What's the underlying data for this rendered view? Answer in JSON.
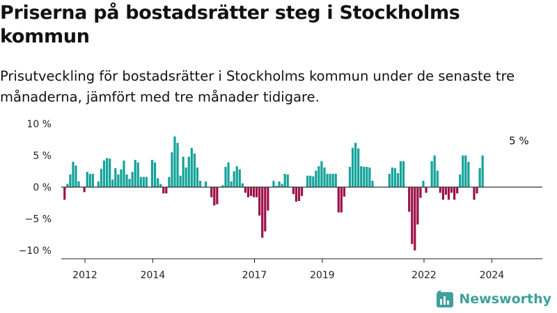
{
  "title": "Priserna på bostadsrätter steg i Stockholms kommun",
  "subtitle": "Prisutveckling för bostadsrätter i Stockholms kommun under de senaste tre månaderna, jämfört med tre månader tidigare.",
  "brand": {
    "name": "Newsworthy",
    "icon": "newsworthy-logo-icon",
    "color": "#3ea19b"
  },
  "colors": {
    "positive": "#14a39a",
    "negative": "#9b1148",
    "zero_line": "#333333"
  },
  "chart_data": {
    "type": "bar",
    "title": "",
    "xlabel": "",
    "ylabel": "",
    "ylim": [
      -11,
      10
    ],
    "y_ticks": [
      10,
      5,
      0,
      -5,
      -10
    ],
    "y_tick_labels": [
      "10 %",
      "5 %",
      "0 %",
      "−5 %",
      "−10 %"
    ],
    "x_tick_labels": [
      "2012",
      "2014",
      "2017",
      "2019",
      "2022",
      "2024"
    ],
    "x_tick_positions": [
      2012,
      2014,
      2017,
      2019,
      2022,
      2024
    ],
    "x_start": 2011.4,
    "x_step": 0.0833,
    "grid": false,
    "annotations": [
      {
        "text": "5 %",
        "x": 2024.84,
        "y": 5
      }
    ],
    "values": [
      -2,
      0.5,
      2,
      4,
      3.4,
      0.9,
      0,
      -0.8,
      2.4,
      2.1,
      2.1,
      0,
      0.9,
      2.9,
      4.2,
      4.6,
      4.5,
      1.2,
      3,
      2,
      2.8,
      4.2,
      2,
      1.3,
      2.4,
      4.3,
      3.9,
      1.6,
      1.6,
      1.6,
      0,
      4.3,
      3.9,
      1.4,
      0.5,
      -1,
      -1,
      1.6,
      5.5,
      8,
      7,
      1.8,
      4.8,
      3.1,
      4.8,
      6.2,
      5.3,
      3.1,
      1,
      0,
      0.9,
      0,
      -1.6,
      -2.9,
      -2.7,
      0,
      0.3,
      3.2,
      3.9,
      0.9,
      2.5,
      3.3,
      2.8,
      0.6,
      -0.9,
      -1.6,
      -1.4,
      -1.6,
      -1.6,
      -4.5,
      -8,
      -7,
      -3.7,
      0,
      1,
      0.2,
      0.9,
      0.5,
      2.1,
      2,
      0,
      -1.1,
      -2.3,
      -2.2,
      -1.4,
      0,
      1.8,
      1.8,
      1.7,
      2.6,
      3.3,
      4.1,
      3.1,
      2.1,
      2.1,
      2.1,
      2.1,
      -4,
      -4,
      -1.5,
      0,
      3.2,
      6.2,
      7,
      6.1,
      3.3,
      3.2,
      3.2,
      3.1,
      1,
      0,
      0,
      0,
      0,
      0,
      2.1,
      3.1,
      3,
      2.2,
      4.1,
      4.1,
      0,
      -3.9,
      -9,
      -10,
      -5.9,
      -1.7,
      1,
      -0.9,
      0,
      4.1,
      5,
      2.6,
      -0.9,
      -2,
      -1.2,
      -2,
      -0.9,
      -2,
      -1,
      2,
      5,
      5,
      4,
      0,
      -2,
      -1,
      3,
      5
    ]
  }
}
